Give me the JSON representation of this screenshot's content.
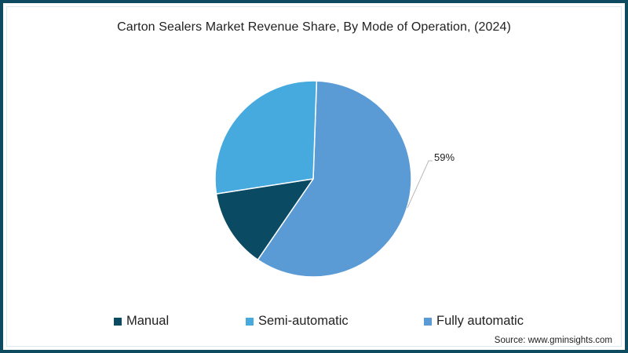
{
  "chart_data": {
    "type": "pie",
    "title": "Carton Sealers Market Revenue Share, By Mode of Operation, (2024)",
    "categories": [
      "Manual",
      "Semi-automatic",
      "Fully automatic"
    ],
    "values": [
      13,
      28,
      59
    ],
    "unit": "%",
    "colors": [
      "#0b4a63",
      "#46aadf",
      "#5b9bd5"
    ],
    "data_labels": [
      {
        "category": "Fully automatic",
        "text": "59%"
      }
    ],
    "legend_position": "bottom",
    "start_angle_deg": 2,
    "direction": "clockwise",
    "order_drawn": [
      "Fully automatic",
      "Manual",
      "Semi-automatic"
    ]
  },
  "header": {
    "title": "Carton Sealers Market Revenue Share, By Mode of Operation, (2024)"
  },
  "labels": {
    "fully_automatic_pct": "59%"
  },
  "legend": {
    "items": [
      {
        "label": "Manual",
        "color": "#0b4a63"
      },
      {
        "label": "Semi-automatic",
        "color": "#46aadf"
      },
      {
        "label": "Fully automatic",
        "color": "#5b9bd5"
      }
    ]
  },
  "footer": {
    "source": "Source: www.gminsights.com"
  },
  "theme": {
    "border_color": "#0e4a60"
  }
}
